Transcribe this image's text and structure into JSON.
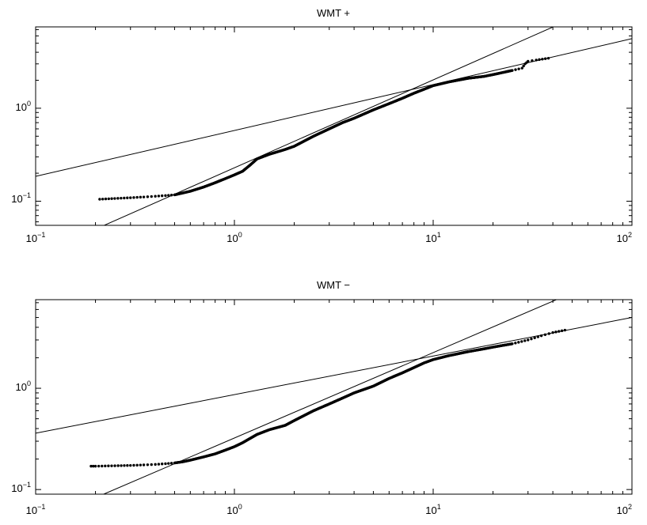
{
  "chart_data": [
    {
      "type": "scatter",
      "title": "WMT +",
      "x_scale": "log",
      "y_scale": "log",
      "xlim": [
        0.1,
        100
      ],
      "ylim": [
        0.055,
        7.5
      ],
      "x_ticks": [
        0.1,
        1,
        10,
        100
      ],
      "x_tick_labels": [
        {
          "base": "10",
          "exp": "−1"
        },
        {
          "base": "10",
          "exp": "0"
        },
        {
          "base": "10",
          "exp": "1"
        },
        {
          "base": "10",
          "exp": "2"
        }
      ],
      "y_ticks": [
        0.1,
        1
      ],
      "y_tick_labels": [
        {
          "base": "10",
          "exp": "−1"
        },
        {
          "base": "10",
          "exp": "0"
        }
      ],
      "grid": false,
      "colors": {
        "points": "#000000",
        "lines": "#000000"
      },
      "curve": [
        [
          0.21,
          0.105
        ],
        [
          0.25,
          0.107
        ],
        [
          0.3,
          0.109
        ],
        [
          0.35,
          0.111
        ],
        [
          0.4,
          0.113
        ],
        [
          0.45,
          0.115
        ],
        [
          0.5,
          0.117
        ],
        [
          0.6,
          0.128
        ],
        [
          0.7,
          0.142
        ],
        [
          0.8,
          0.158
        ],
        [
          0.9,
          0.175
        ],
        [
          1.0,
          0.192
        ],
        [
          1.1,
          0.21
        ],
        [
          1.2,
          0.245
        ],
        [
          1.3,
          0.285
        ],
        [
          1.5,
          0.32
        ],
        [
          1.8,
          0.36
        ],
        [
          2.0,
          0.39
        ],
        [
          2.5,
          0.5
        ],
        [
          3.0,
          0.6
        ],
        [
          3.5,
          0.7
        ],
        [
          4.0,
          0.78
        ],
        [
          5.0,
          0.96
        ],
        [
          6.0,
          1.12
        ],
        [
          7.0,
          1.28
        ],
        [
          8.0,
          1.45
        ],
        [
          9.0,
          1.6
        ],
        [
          10.0,
          1.75
        ],
        [
          12.0,
          1.92
        ],
        [
          15.0,
          2.1
        ],
        [
          18.0,
          2.2
        ],
        [
          20.0,
          2.3
        ],
        [
          25.0,
          2.55
        ],
        [
          28.0,
          2.7
        ],
        [
          29.0,
          3.0
        ],
        [
          30.0,
          3.2
        ],
        [
          33.0,
          3.3
        ],
        [
          38.0,
          3.45
        ]
      ],
      "fit_lines": [
        {
          "x": [
            0.1,
            100
          ],
          "y": [
            0.185,
            5.6
          ]
        },
        {
          "x": [
            0.2,
            43
          ],
          "y": [
            0.05,
            8.0
          ]
        }
      ]
    },
    {
      "type": "scatter",
      "title": "WMT −",
      "x_scale": "log",
      "y_scale": "log",
      "xlim": [
        0.1,
        100
      ],
      "ylim": [
        0.09,
        7.5
      ],
      "x_ticks": [
        0.1,
        1,
        10,
        100
      ],
      "x_tick_labels": [
        {
          "base": "10",
          "exp": "−1"
        },
        {
          "base": "10",
          "exp": "0"
        },
        {
          "base": "10",
          "exp": "1"
        },
        {
          "base": "10",
          "exp": "2"
        }
      ],
      "y_ticks": [
        0.1,
        1
      ],
      "y_tick_labels": [
        {
          "base": "10",
          "exp": "−1"
        },
        {
          "base": "10",
          "exp": "0"
        }
      ],
      "grid": false,
      "colors": {
        "points": "#000000",
        "lines": "#000000"
      },
      "curve": [
        [
          0.19,
          0.17
        ],
        [
          0.2,
          0.17
        ],
        [
          0.26,
          0.172
        ],
        [
          0.3,
          0.173
        ],
        [
          0.35,
          0.175
        ],
        [
          0.4,
          0.177
        ],
        [
          0.45,
          0.18
        ],
        [
          0.5,
          0.183
        ],
        [
          0.55,
          0.188
        ],
        [
          0.6,
          0.195
        ],
        [
          0.7,
          0.21
        ],
        [
          0.8,
          0.225
        ],
        [
          0.9,
          0.245
        ],
        [
          1.0,
          0.265
        ],
        [
          1.1,
          0.29
        ],
        [
          1.2,
          0.32
        ],
        [
          1.3,
          0.35
        ],
        [
          1.5,
          0.39
        ],
        [
          1.8,
          0.43
        ],
        [
          2.0,
          0.48
        ],
        [
          2.5,
          0.6
        ],
        [
          3.0,
          0.7
        ],
        [
          3.5,
          0.8
        ],
        [
          4.0,
          0.9
        ],
        [
          5.0,
          1.05
        ],
        [
          6.0,
          1.25
        ],
        [
          7.0,
          1.42
        ],
        [
          8.0,
          1.6
        ],
        [
          9.0,
          1.78
        ],
        [
          10.0,
          1.92
        ],
        [
          12.0,
          2.1
        ],
        [
          15.0,
          2.3
        ],
        [
          18.0,
          2.45
        ],
        [
          20.0,
          2.55
        ],
        [
          25.0,
          2.75
        ],
        [
          30.0,
          3.0
        ],
        [
          35.0,
          3.3
        ],
        [
          40.0,
          3.55
        ],
        [
          46.0,
          3.75
        ]
      ],
      "fit_lines": [
        {
          "x": [
            0.1,
            100
          ],
          "y": [
            0.36,
            5.0
          ]
        },
        {
          "x": [
            0.22,
            45
          ],
          "y": [
            0.09,
            8.0
          ]
        }
      ]
    }
  ]
}
